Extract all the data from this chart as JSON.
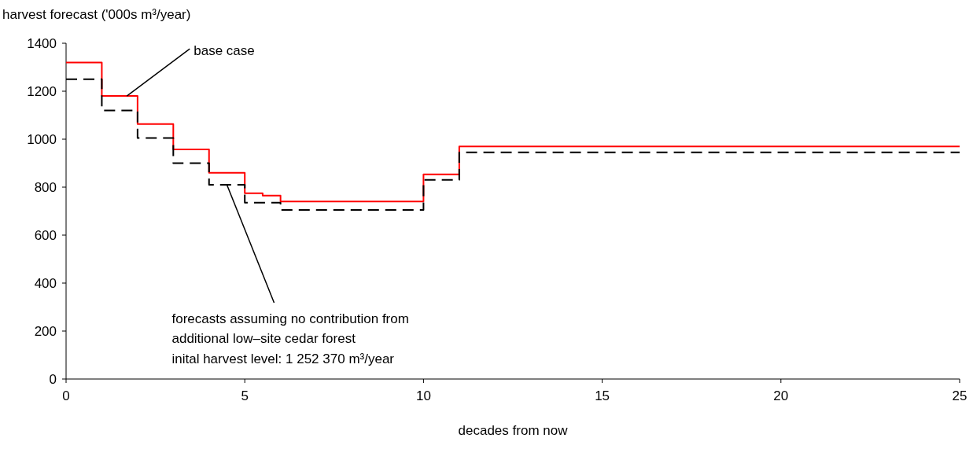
{
  "chart_data": {
    "type": "step",
    "ylabel": "harvest forecast ('000s m³/year)",
    "xlabel": "decades from now",
    "xlim": [
      0,
      25
    ],
    "xticks": [
      0,
      5,
      10,
      15,
      20,
      25
    ],
    "ylim": [
      0,
      1400
    ],
    "yticks": [
      0,
      200,
      400,
      600,
      800,
      1000,
      1200,
      1400
    ],
    "grid": false,
    "series": [
      {
        "color": "#ff0000",
        "line_style": "solid",
        "x": [
          0,
          1,
          2,
          3,
          4,
          5,
          5.5,
          6,
          10,
          11,
          25
        ],
        "values": [
          1320,
          1180,
          1063,
          957,
          860,
          775,
          765,
          740,
          853,
          970,
          970
        ]
      },
      {
        "color": "#000000",
        "line_style": "dashed",
        "x": [
          0,
          1,
          2,
          3,
          4,
          5,
          6,
          10,
          11,
          25
        ],
        "values": [
          1250,
          1120,
          1005,
          900,
          810,
          735,
          705,
          830,
          945,
          945
        ]
      }
    ],
    "annotations": [
      {
        "text": "base case",
        "x": 1.7,
        "y": 1180
      },
      {
        "text": "forecasts assuming no contribution from\nadditional low–site cedar forest\ninital harvest level: 1 252 370 m³/year",
        "x": 4.5,
        "y": 810
      }
    ]
  }
}
